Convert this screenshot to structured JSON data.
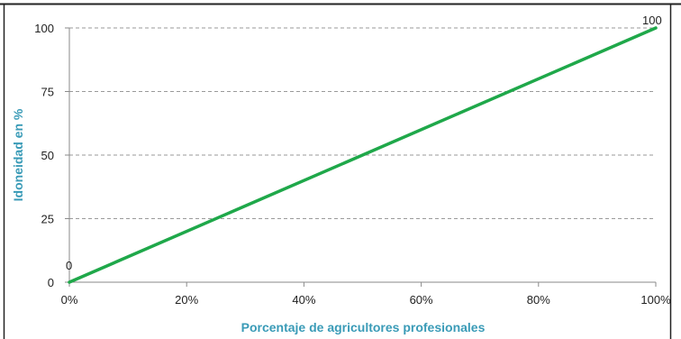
{
  "chart_data": {
    "type": "line",
    "title": "",
    "xlabel": "Porcentaje de agricultores profesionales",
    "ylabel": "Idoneidad en %",
    "x": [
      0,
      100
    ],
    "x_ticks": [
      0,
      20,
      40,
      60,
      80,
      100
    ],
    "x_tick_labels": [
      "0%",
      "20%",
      "40%",
      "60%",
      "80%",
      "100%"
    ],
    "y_ticks": [
      0,
      25,
      50,
      75,
      100
    ],
    "y_tick_labels": [
      "0",
      "25",
      "50",
      "75",
      "100"
    ],
    "xlim": [
      0,
      100
    ],
    "ylim": [
      0,
      100
    ],
    "grid": "horizontal-dashed",
    "legend": "none",
    "series": [
      {
        "values": [
          0,
          100
        ],
        "color": "#1fa84a"
      }
    ],
    "data_labels": [
      "0",
      "100"
    ],
    "colors": {
      "line": "#1fa84a",
      "axis_title": "#3a9bb7",
      "grid": "#9a9a9a",
      "axis": "#8a8a8a"
    }
  }
}
